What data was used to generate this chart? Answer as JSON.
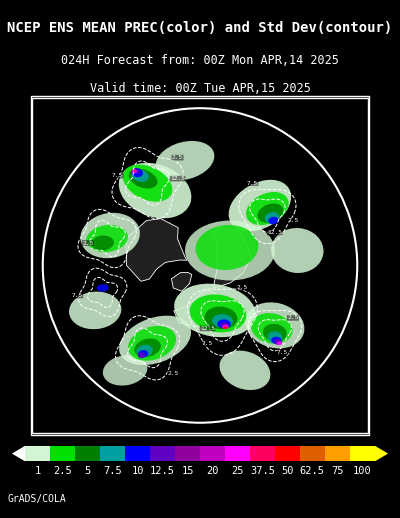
{
  "title_line1": "NCEP ENS MEAN PREC(color) and Std Dev(contour)",
  "title_line2": "024H Forecast from: 00Z Mon APR,14 2025",
  "title_line3": "Valid time: 00Z Tue APR,15 2025",
  "colorbar_labels": [
    "1",
    "2.5",
    "5",
    "7.5",
    "10",
    "12.5",
    "15",
    "20",
    "25",
    "37.5",
    "50",
    "62.5",
    "75",
    "100"
  ],
  "colorbar_colors": [
    "#d4f5d4",
    "#00e000",
    "#008000",
    "#00a0a0",
    "#0000ff",
    "#6000c0",
    "#9000a0",
    "#c000c0",
    "#ff00ff",
    "#ff0060",
    "#ff0000",
    "#e06000",
    "#ffa000",
    "#ffff00"
  ],
  "background_color": "#000000",
  "map_bg_color": "#000000",
  "land_color": "#ffffff",
  "ocean_color": "#000000",
  "border_color": "#ffffff",
  "title_color": "#ffffff",
  "label_color": "#ffffff",
  "credit_text": "GrADS/COLA",
  "credit_fontsize": 7,
  "title_fontsize": 10,
  "subtitle_fontsize": 8.5,
  "colorbar_label_fontsize": 7.5
}
